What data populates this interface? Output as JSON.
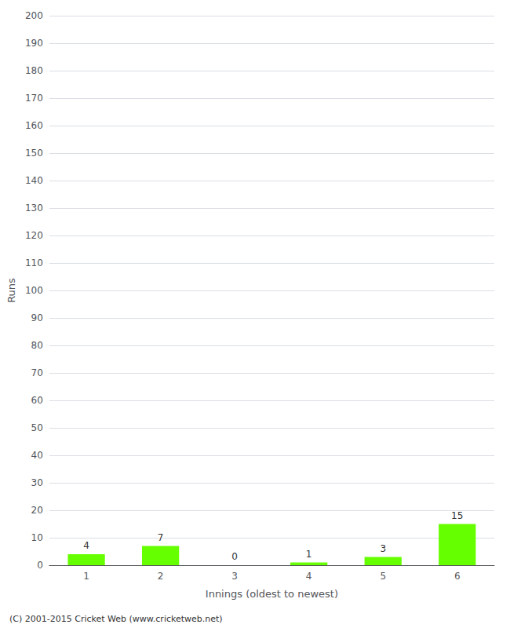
{
  "chart_data": {
    "type": "bar",
    "xlabel": "Innings (oldest to newest)",
    "ylabel": "Runs",
    "categories": [
      "1",
      "2",
      "3",
      "4",
      "5",
      "6"
    ],
    "values": [
      4,
      7,
      0,
      1,
      3,
      15
    ],
    "color": "#66ff00",
    "ylim": [
      0,
      200
    ],
    "yticks": [
      0,
      10,
      20,
      30,
      40,
      50,
      60,
      70,
      80,
      90,
      100,
      110,
      120,
      130,
      140,
      150,
      160,
      170,
      180,
      190,
      200
    ],
    "grid": true,
    "data_labels": true,
    "annotations": [
      "(C) 2001-2015 Cricket Web (www.cricketweb.net)"
    ]
  }
}
